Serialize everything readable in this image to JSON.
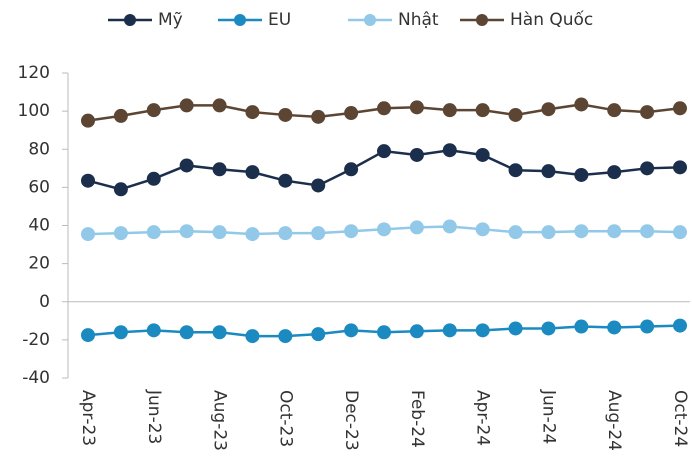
{
  "chart_data": {
    "type": "line",
    "categories": [
      "Apr-23",
      null,
      "Jun-23",
      null,
      "Aug-23",
      null,
      "Oct-23",
      null,
      "Dec-23",
      null,
      "Feb-24",
      null,
      "Apr-24",
      null,
      "Jun-24",
      null,
      "Aug-24",
      null,
      "Oct-24"
    ],
    "series": [
      {
        "name": "Mỹ",
        "color": "#1b2f4d",
        "values": [
          63.5,
          59,
          64.5,
          71.5,
          69.5,
          68,
          63.5,
          61,
          69.5,
          79,
          77,
          79.5,
          77,
          69,
          68.5,
          66.5,
          68,
          70,
          70.5
        ]
      },
      {
        "name": "EU",
        "color": "#1a8ac0",
        "values": [
          -17.5,
          -16,
          -15,
          -16,
          -16,
          -18,
          -18,
          -17,
          -15,
          -16,
          -15.5,
          -15,
          -15,
          -14,
          -14,
          -13,
          -13.5,
          -13,
          -12.5
        ]
      },
      {
        "name": "Nhật",
        "color": "#92c8e8",
        "values": [
          35.5,
          36,
          36.5,
          37,
          36.5,
          35.5,
          36,
          36,
          37,
          38,
          39,
          39.5,
          38,
          36.5,
          36.5,
          37,
          37,
          37,
          36.5
        ]
      },
      {
        "name": "Hàn Quốc",
        "color": "#5c4633",
        "values": [
          95,
          97.5,
          100.5,
          103,
          103,
          99.5,
          98,
          97,
          99,
          101.5,
          102,
          100.5,
          100.5,
          98,
          101,
          103.5,
          100.5,
          99.5,
          101.5
        ]
      }
    ],
    "ylim": [
      -40,
      120
    ],
    "yticks": [
      -40,
      -20,
      0,
      20,
      40,
      60,
      80,
      100,
      120
    ],
    "grid": false
  }
}
